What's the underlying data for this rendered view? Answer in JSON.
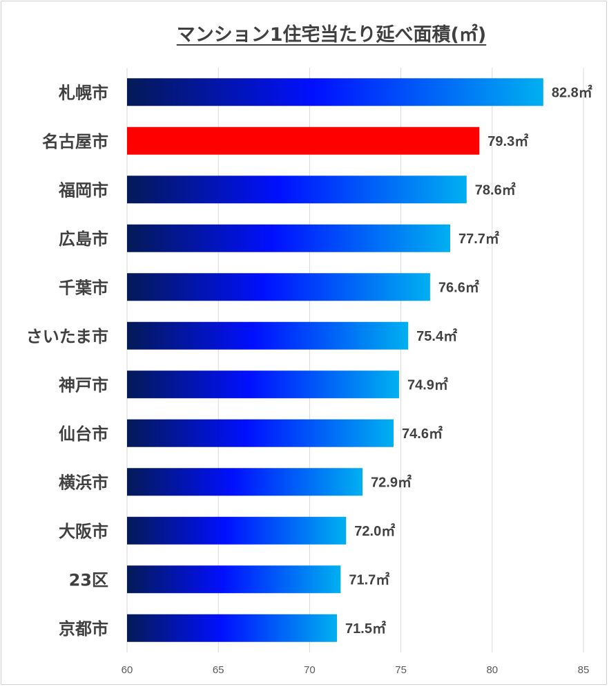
{
  "chart_data": {
    "type": "bar",
    "orientation": "horizontal",
    "title": "マンション1住宅当たり延べ面積(㎡)",
    "categories": [
      "札幌市",
      "名古屋市",
      "福岡市",
      "広島市",
      "千葉市",
      "さいたま市",
      "神戸市",
      "仙台市",
      "横浜市",
      "大阪市",
      "23区",
      "京都市"
    ],
    "values": [
      82.8,
      79.3,
      78.6,
      77.7,
      76.6,
      75.4,
      74.9,
      74.6,
      72.9,
      72.0,
      71.7,
      71.5
    ],
    "value_labels": [
      "82.8㎡",
      "79.3㎡",
      "78.6㎡",
      "77.7㎡",
      "76.6㎡",
      "75.4㎡",
      "74.9㎡",
      "74.6㎡",
      "72.9㎡",
      "72.0㎡",
      "71.7㎡",
      "71.5㎡"
    ],
    "highlight_index": 1,
    "xlim": [
      60,
      85
    ],
    "xticks": [
      60,
      65,
      70,
      75,
      80,
      85
    ],
    "grid": true,
    "colors": {
      "gradient_start": "#041a56",
      "gradient_mid": "#0010ff",
      "gradient_end": "#00b0f0",
      "highlight": "#ff0000",
      "grid": "#d9d9d9",
      "text": "#404040"
    }
  }
}
